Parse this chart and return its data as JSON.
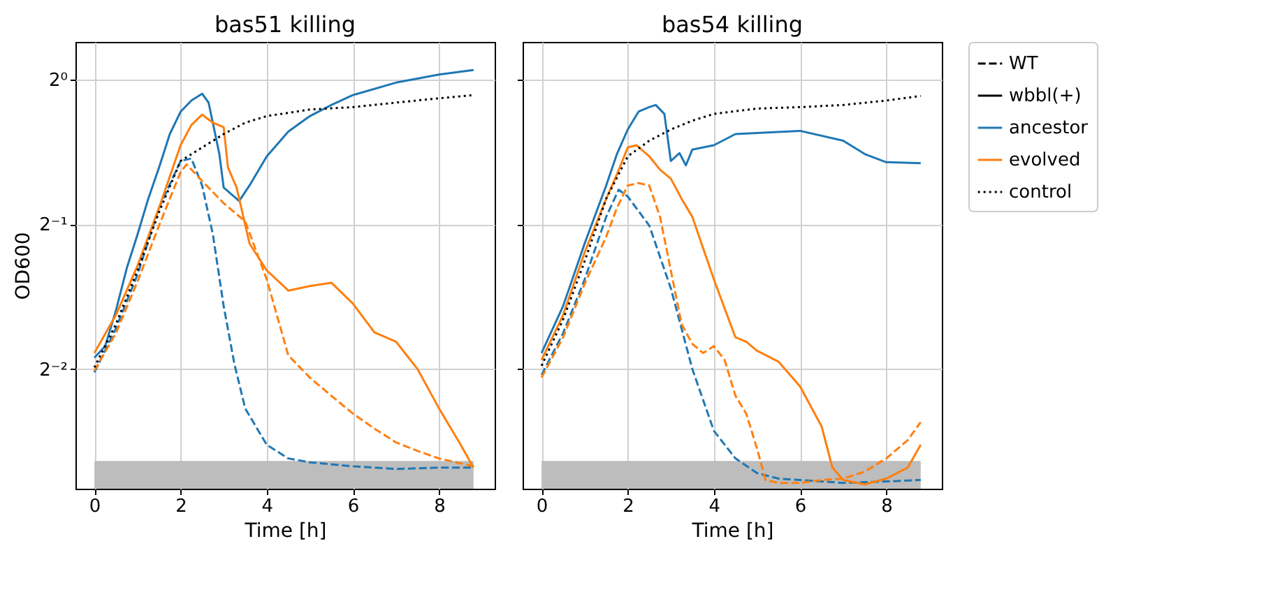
{
  "chart_data": [
    {
      "type": "line",
      "title": "bas51 killing",
      "xlabel": "Time [h]",
      "ylabel": "OD600",
      "log": "y",
      "grid": true,
      "legend": false,
      "xlim": [
        -0.44,
        9.29
      ],
      "xticks": [
        0,
        2,
        4,
        6,
        8
      ],
      "ylim": [
        0.141,
        1.197
      ],
      "yticks": [
        {
          "value": 1,
          "label": "2⁰"
        },
        {
          "value": 0.5,
          "label": "2⁻¹"
        },
        {
          "value": 0.25,
          "label": "2⁻²"
        }
      ],
      "bands": [
        {
          "axis": "y",
          "from": 0.141,
          "to": 0.161,
          "color": "#bdbdbd"
        }
      ],
      "series": [
        {
          "color": "#1f77b4",
          "line_style": "solid",
          "x": [
            0,
            0.25,
            0.5,
            0.75,
            1,
            1.25,
            1.5,
            1.75,
            2,
            2.25,
            2.5,
            2.65,
            2.9,
            3,
            3.36,
            3.6,
            4,
            4.5,
            5,
            5.5,
            6,
            7,
            8,
            8.8
          ],
          "values": [
            0.264,
            0.279,
            0.331,
            0.405,
            0.476,
            0.565,
            0.656,
            0.77,
            0.857,
            0.904,
            0.934,
            0.895,
            0.7,
            0.596,
            0.559,
            0.602,
            0.692,
            0.779,
            0.839,
            0.885,
            0.928,
            0.985,
            1.024,
            1.046
          ]
        },
        {
          "color": "#1f77b4",
          "line_style": "dashed",
          "x": [
            0,
            0.5,
            1,
            1.5,
            2,
            2.25,
            2.5,
            2.75,
            3,
            3.25,
            3.5,
            4,
            4.5,
            5,
            6,
            7,
            8,
            8.8
          ],
          "values": [
            0.246,
            0.304,
            0.393,
            0.541,
            0.677,
            0.685,
            0.602,
            0.476,
            0.338,
            0.256,
            0.207,
            0.174,
            0.163,
            0.16,
            0.157,
            0.155,
            0.156,
            0.156
          ]
        },
        {
          "color": "#ff7f0e",
          "line_style": "solid",
          "x": [
            0,
            0.5,
            1,
            1.5,
            2,
            2.25,
            2.5,
            2.75,
            3,
            3.1,
            3.3,
            3.6,
            4,
            4.5,
            5,
            5.5,
            6,
            6.5,
            7,
            7.5,
            8,
            8.5,
            8.8
          ],
          "values": [
            0.27,
            0.324,
            0.41,
            0.541,
            0.73,
            0.804,
            0.845,
            0.813,
            0.796,
            0.656,
            0.596,
            0.456,
            0.401,
            0.364,
            0.372,
            0.378,
            0.342,
            0.298,
            0.285,
            0.25,
            0.207,
            0.174,
            0.156
          ]
        },
        {
          "color": "#ff7f0e",
          "line_style": "dashed",
          "x": [
            0,
            0.5,
            1,
            1.5,
            2,
            2.14,
            2.5,
            3,
            3.5,
            4,
            4.5,
            5,
            5.5,
            6,
            6.5,
            7,
            7.5,
            8,
            8.8
          ],
          "values": [
            0.248,
            0.297,
            0.38,
            0.497,
            0.642,
            0.666,
            0.615,
            0.553,
            0.507,
            0.384,
            0.267,
            0.24,
            0.22,
            0.202,
            0.188,
            0.176,
            0.169,
            0.163,
            0.157
          ]
        },
        {
          "color": "#000000",
          "line_style": "dotted",
          "x": [
            0,
            0.5,
            1,
            1.5,
            2,
            2.5,
            3,
            3.5,
            4,
            5,
            6,
            7,
            8,
            8.8
          ],
          "values": [
            0.252,
            0.31,
            0.401,
            0.53,
            0.677,
            0.722,
            0.77,
            0.813,
            0.839,
            0.866,
            0.876,
            0.895,
            0.914,
            0.928
          ]
        }
      ]
    },
    {
      "type": "line",
      "title": "bas54 killing",
      "xlabel": "Time [h]",
      "log": "y",
      "grid": true,
      "legend": "top right",
      "tick_labels": "x",
      "xlim": [
        -0.44,
        9.29
      ],
      "xticks": [
        0,
        2,
        4,
        6,
        8
      ],
      "ylim": [
        0.141,
        1.197
      ],
      "yticks": [
        {
          "value": 1,
          "label": null
        },
        {
          "value": 0.5,
          "label": null
        },
        {
          "value": 0.25,
          "label": null
        }
      ],
      "bands": [
        {
          "axis": "y",
          "from": 0.141,
          "to": 0.161,
          "color": "#bdbdbd"
        }
      ],
      "series": [
        {
          "name": "WT",
          "color": "#000000",
          "line_style": "dashed"
        },
        {
          "name": "wbbl(+)",
          "color": "#000000",
          "line_style": "solid"
        },
        {
          "name": "ancestor",
          "color": "#1f77b4",
          "line_style": "solid",
          "x": [
            0,
            0.5,
            1,
            1.5,
            1.75,
            2,
            2.25,
            2.5,
            2.65,
            2.85,
            3,
            3.2,
            3.35,
            3.5,
            4,
            4.5,
            5,
            6,
            7,
            7.5,
            8,
            8.8
          ],
          "values": [
            0.27,
            0.338,
            0.456,
            0.602,
            0.7,
            0.787,
            0.857,
            0.876,
            0.885,
            0.848,
            0.677,
            0.703,
            0.663,
            0.715,
            0.73,
            0.77,
            0.774,
            0.782,
            0.746,
            0.7,
            0.673,
            0.67
          ]
        },
        {
          "color": "#1f77b4",
          "line_style": "dashed",
          "x": [
            0,
            0.5,
            1,
            1.5,
            1.79,
            2,
            2.5,
            3,
            3.5,
            4,
            4.5,
            5,
            5.5,
            6,
            7,
            8,
            8.8
          ],
          "values": [
            0.243,
            0.297,
            0.384,
            0.518,
            0.59,
            0.571,
            0.497,
            0.368,
            0.25,
            0.186,
            0.163,
            0.152,
            0.148,
            0.147,
            0.145,
            0.146,
            0.147
          ]
        },
        {
          "name": "evolved",
          "color": "#ff7f0e",
          "line_style": "solid",
          "x": [
            0,
            0.5,
            1,
            1.5,
            1.75,
            2,
            2.2,
            2.5,
            2.75,
            3,
            3.25,
            3.5,
            3.75,
            4,
            4.5,
            4.75,
            5,
            5.5,
            6,
            6.5,
            6.75,
            7,
            7.5,
            8,
            8.5,
            8.8
          ],
          "values": [
            0.261,
            0.324,
            0.437,
            0.565,
            0.635,
            0.722,
            0.73,
            0.692,
            0.649,
            0.622,
            0.565,
            0.518,
            0.446,
            0.384,
            0.291,
            0.285,
            0.273,
            0.259,
            0.23,
            0.19,
            0.156,
            0.147,
            0.144,
            0.148,
            0.156,
            0.174
          ]
        },
        {
          "color": "#ff7f0e",
          "line_style": "dashed",
          "x": [
            0,
            0.5,
            1,
            1.5,
            1.75,
            2,
            2.25,
            2.5,
            2.75,
            3,
            3.25,
            3.5,
            3.75,
            4,
            4.25,
            4.5,
            4.75,
            5,
            5.2,
            5.5,
            6,
            6.5,
            7,
            7.5,
            8,
            8.5,
            8.8
          ],
          "values": [
            0.24,
            0.291,
            0.376,
            0.471,
            0.541,
            0.602,
            0.609,
            0.602,
            0.518,
            0.401,
            0.31,
            0.282,
            0.27,
            0.279,
            0.261,
            0.22,
            0.202,
            0.171,
            0.147,
            0.145,
            0.145,
            0.147,
            0.148,
            0.153,
            0.163,
            0.178,
            0.194
          ]
        },
        {
          "name": "control",
          "color": "#000000",
          "line_style": "dotted",
          "x": [
            0,
            0.5,
            1,
            1.5,
            2,
            2.5,
            3,
            3.5,
            4,
            5,
            6,
            7,
            8,
            8.8
          ],
          "values": [
            0.254,
            0.317,
            0.419,
            0.565,
            0.692,
            0.746,
            0.787,
            0.821,
            0.848,
            0.87,
            0.876,
            0.885,
            0.904,
            0.924
          ]
        }
      ]
    }
  ]
}
